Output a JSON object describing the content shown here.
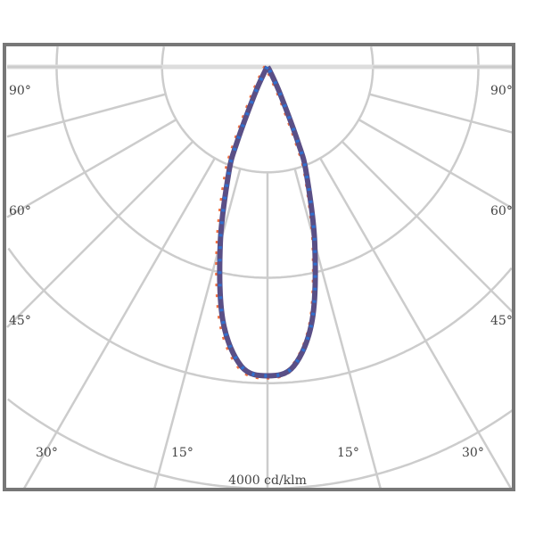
{
  "diagram": {
    "type": "polar-light-distribution",
    "scale_label": "4000 cd/klm",
    "ring_values": [
      1000,
      2000,
      3000,
      4000
    ],
    "angle_labels": {
      "left": [
        "90°",
        "60°",
        "45°"
      ],
      "right": [
        "90°",
        "60°",
        "45°"
      ],
      "bottom": [
        "30°",
        "15°",
        "15°",
        "30°"
      ]
    },
    "colors": {
      "series_a": "#f07040",
      "series_b": "#3070d0",
      "overlap": "#5a4f86",
      "grid": "#cccccc",
      "frame": "#777777"
    },
    "chart_data": {
      "type": "polar",
      "angle_unit": "degrees from nadir",
      "radial_unit": "cd/klm",
      "rmax": 4000,
      "angles": [
        0,
        5,
        10,
        15,
        20,
        22,
        25,
        30,
        35
      ],
      "series": [
        {
          "values": [
            2940,
            2860,
            2460,
            1760,
            1120,
            820,
            320,
            60,
            0
          ]
        },
        {
          "values": [
            2930,
            2850,
            2440,
            1730,
            1080,
            780,
            290,
            50,
            0
          ]
        }
      ]
    }
  }
}
